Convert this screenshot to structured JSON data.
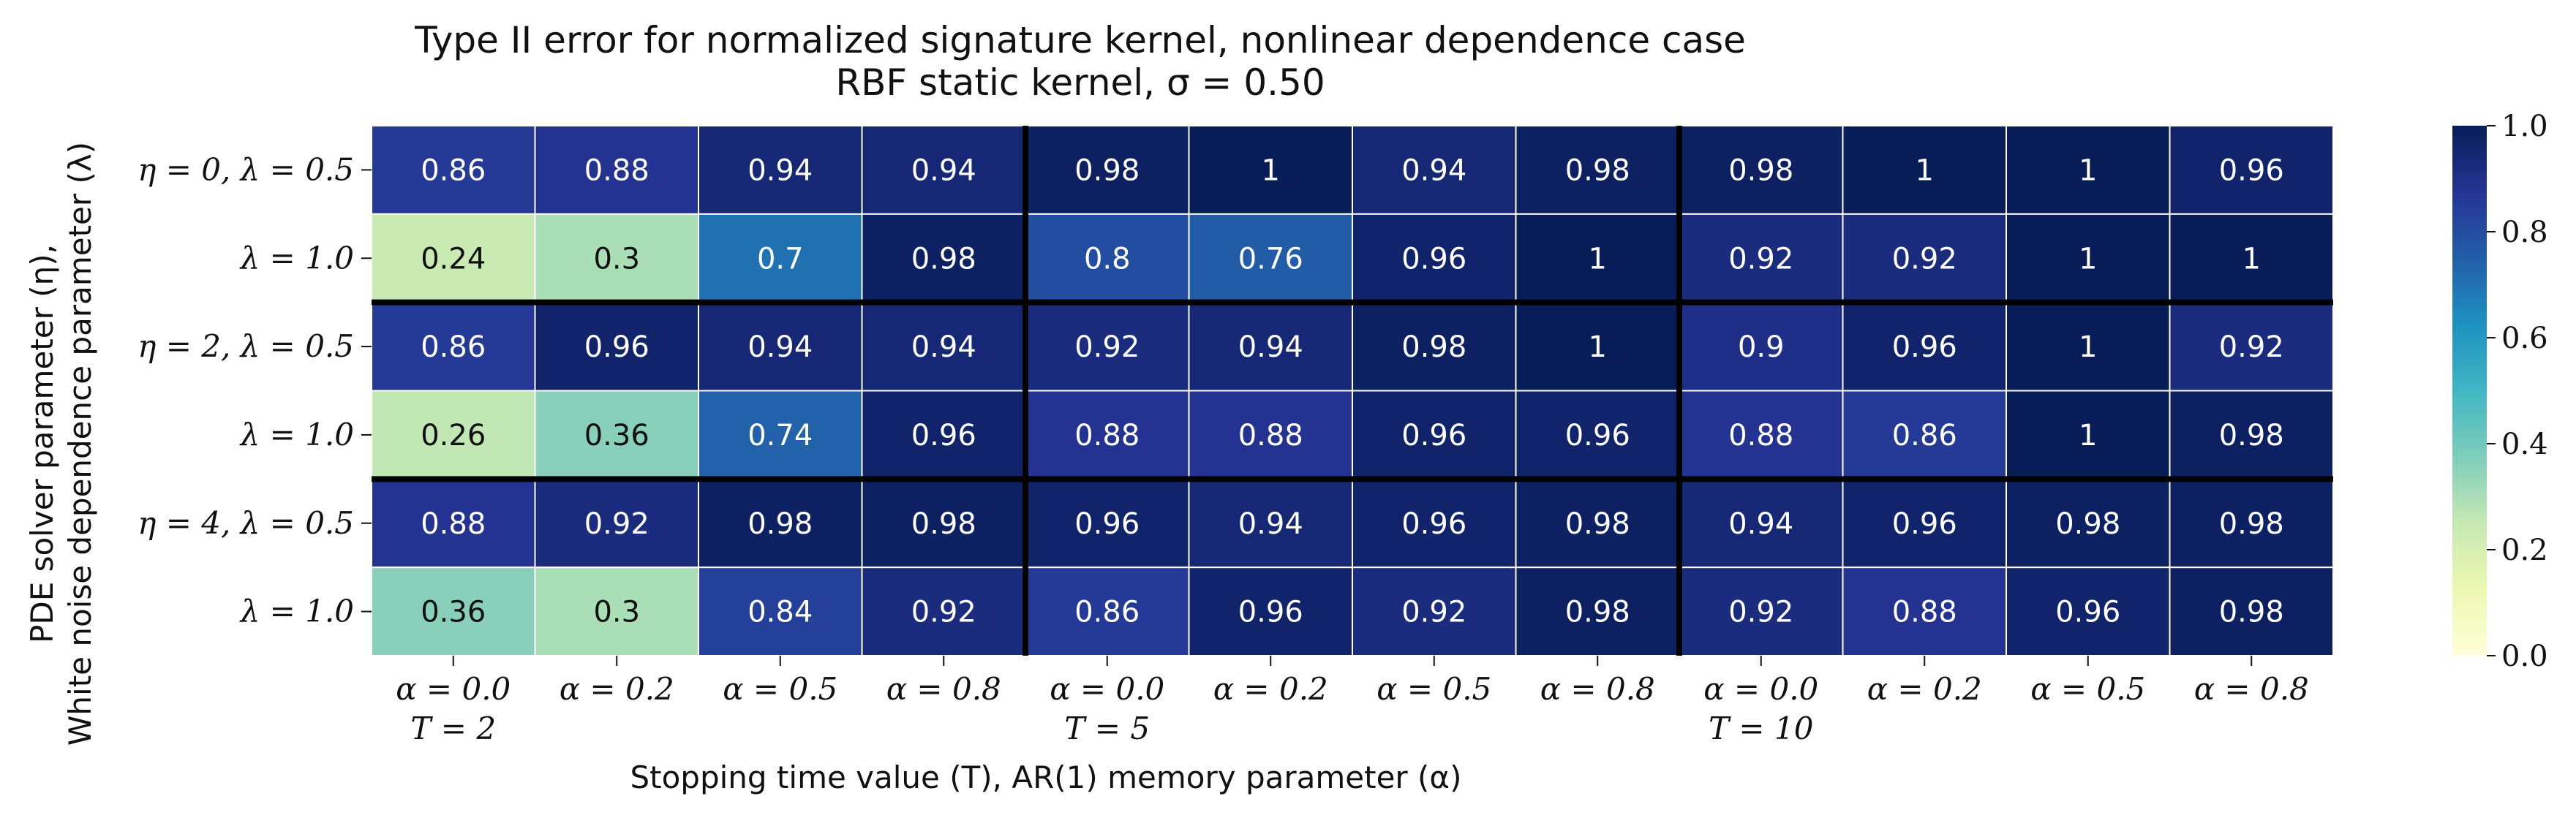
{
  "chart_data": {
    "type": "heatmap",
    "title": "Type II error for normalized signature kernel, nonlinear dependence case",
    "subtitle": "RBF static kernel, σ = 0.50",
    "xlabel": "Stopping time value (T), AR(1) memory parameter (α)",
    "ylabel_line1": "PDE solver parameter (η),",
    "ylabel_line2": "White noise dependence parameter (λ)",
    "x_tick_labels": [
      "α = 0.0",
      "α = 0.2",
      "α = 0.5",
      "α = 0.8",
      "α = 0.0",
      "α = 0.2",
      "α = 0.5",
      "α = 0.8",
      "α = 0.0",
      "α = 0.2",
      "α = 0.5",
      "α = 0.8"
    ],
    "x_group_labels": [
      {
        "label": "T = 2",
        "column": 0
      },
      {
        "label": "T = 5",
        "column": 4
      },
      {
        "label": "T = 10",
        "column": 8
      }
    ],
    "y_tick_labels": [
      "η = 0, λ = 0.5",
      "λ = 1.0",
      "η = 2, λ = 0.5",
      "λ = 1.0",
      "η = 4, λ = 0.5",
      "λ = 1.0"
    ],
    "values": [
      [
        0.86,
        0.88,
        0.94,
        0.94,
        0.98,
        1,
        0.94,
        0.98,
        0.98,
        1,
        1,
        0.96
      ],
      [
        0.24,
        0.3,
        0.7,
        0.98,
        0.8,
        0.76,
        0.96,
        1,
        0.92,
        0.92,
        1,
        1
      ],
      [
        0.86,
        0.96,
        0.94,
        0.94,
        0.92,
        0.94,
        0.98,
        1,
        0.9,
        0.96,
        1,
        0.92
      ],
      [
        0.26,
        0.36,
        0.74,
        0.96,
        0.88,
        0.88,
        0.96,
        0.96,
        0.88,
        0.86,
        1,
        0.98
      ],
      [
        0.88,
        0.92,
        0.98,
        0.98,
        0.96,
        0.94,
        0.96,
        0.98,
        0.94,
        0.96,
        0.98,
        0.98
      ],
      [
        0.36,
        0.3,
        0.84,
        0.92,
        0.86,
        0.96,
        0.92,
        0.98,
        0.92,
        0.88,
        0.96,
        0.98
      ]
    ],
    "vmin": 0.0,
    "vmax": 1.0,
    "colormap": "YlGnBu",
    "colorbar_ticks": [
      "0.0",
      "0.2",
      "0.4",
      "0.6",
      "0.8",
      "1.0"
    ],
    "group_separators": {
      "after_columns": [
        4,
        8
      ],
      "after_rows": [
        2,
        4
      ]
    },
    "grid": false,
    "colors": {
      "cell_border": "#ffffff",
      "separator": "#000000",
      "text_dark": "#111111",
      "text_light": "#ffffff"
    }
  }
}
